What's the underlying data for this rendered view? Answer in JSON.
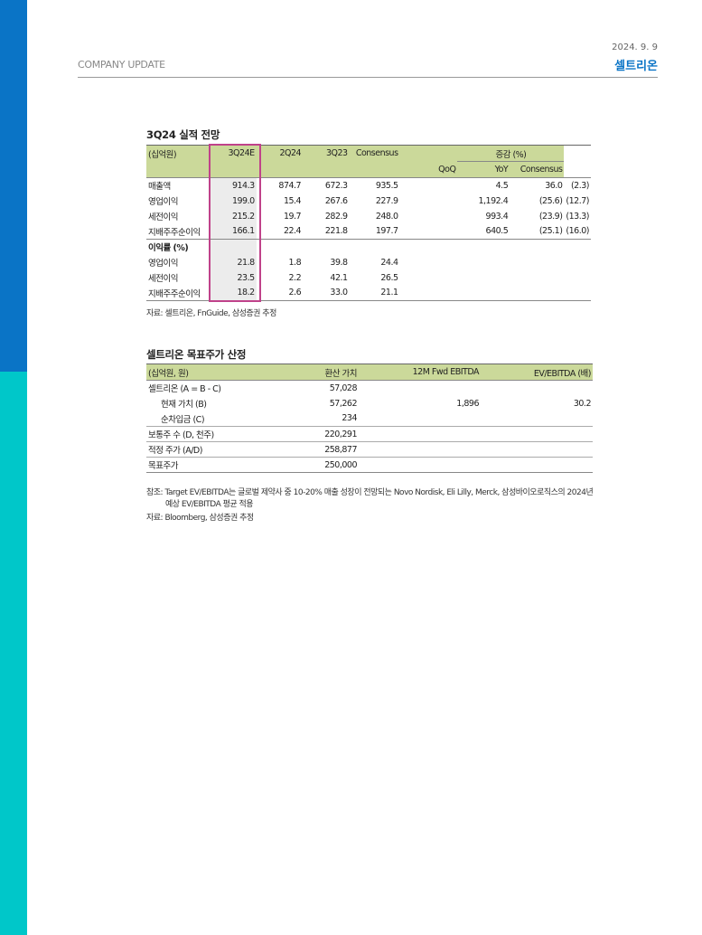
{
  "header": {
    "date": "2024. 9. 9",
    "section": "COMPANY UPDATE",
    "company": "셀트리온"
  },
  "colors": {
    "accent": "#0a74c6",
    "side_bottom": "#00c7c9",
    "table_header": "#cbd99a",
    "highlight": "#c0428a"
  },
  "table1": {
    "title": "3Q24 실적 전망",
    "unit": "(십억원)",
    "cols": [
      "3Q24E",
      "2Q24",
      "3Q23",
      "Consensus"
    ],
    "change_header": "증감 (%)",
    "change_cols": [
      "QoQ",
      "YoY",
      "Consensus"
    ],
    "rows": [
      {
        "label": "매출액",
        "v": [
          "914.3",
          "874.7",
          "672.3",
          "935.5",
          "4.5",
          "36.0",
          "(2.3)"
        ]
      },
      {
        "label": "영업이익",
        "v": [
          "199.0",
          "15.4",
          "267.6",
          "227.9",
          "1,192.4",
          "(25.6)",
          "(12.7)"
        ]
      },
      {
        "label": "세전이익",
        "v": [
          "215.2",
          "19.7",
          "282.9",
          "248.0",
          "993.4",
          "(23.9)",
          "(13.3)"
        ]
      },
      {
        "label": "지배주주순이익",
        "v": [
          "166.1",
          "22.4",
          "221.8",
          "197.7",
          "640.5",
          "(25.1)",
          "(16.0)"
        ]
      }
    ],
    "margin_header": "이익률 (%)",
    "margin_rows": [
      {
        "label": "영업이익",
        "v": [
          "21.8",
          "1.8",
          "39.8",
          "24.4"
        ]
      },
      {
        "label": "세전이익",
        "v": [
          "23.5",
          "2.2",
          "42.1",
          "26.5"
        ]
      },
      {
        "label": "지배주주순이익",
        "v": [
          "18.2",
          "2.6",
          "33.0",
          "21.1"
        ]
      }
    ],
    "source": "자료: 셀트리온, FnGuide, 삼성증권 추정"
  },
  "table2": {
    "title": "셀트리온 목표주가 산정",
    "cols": [
      "(십억원, 원)",
      "환산 가치",
      "12M Fwd EBITDA",
      "EV/EBITDA (배)"
    ],
    "rows": [
      {
        "label": "셀트리온 (A = B - C)",
        "v": [
          "57,028",
          "",
          ""
        ]
      },
      {
        "label": "현재 가치 (B)",
        "v": [
          "57,262",
          "1,896",
          "30.2"
        ]
      },
      {
        "label": "순차입금 (C)",
        "v": [
          "234",
          "",
          ""
        ]
      },
      {
        "label": "보통주 수 (D, 천주)",
        "v": [
          "220,291",
          "",
          ""
        ]
      },
      {
        "label": "적정 주가 (A/D)",
        "v": [
          "258,877",
          "",
          ""
        ]
      },
      {
        "label": "목표주가",
        "v": [
          "250,000",
          "",
          ""
        ]
      }
    ],
    "note1": "참조: Target EV/EBITDA는 글로벌 제약사 중 10-20% 매출 성장이 전망되는 Novo Nordisk, Eli Lilly, Merck, 삼성바이오로직스의 2024년",
    "note2": "예상 EV/EBITDA 평균 적용",
    "source": "자료: Bloomberg, 삼성증권 추정"
  }
}
